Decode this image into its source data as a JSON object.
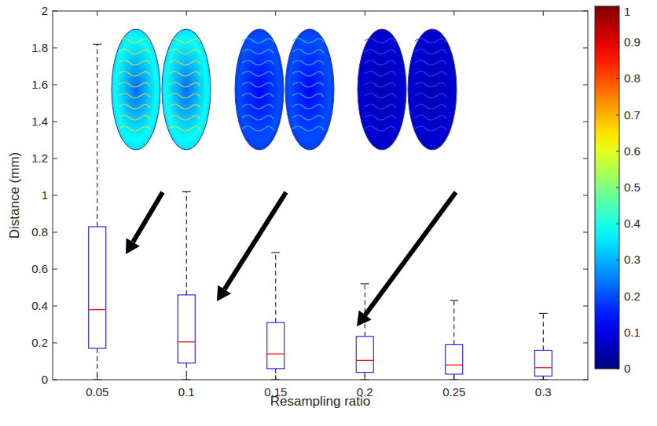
{
  "chart_data": {
    "type": "box",
    "x_label": "Resampling ratio",
    "y_label": "Distance (mm)",
    "categories": [
      "0.05",
      "0.1",
      "0.15",
      "0.2",
      "0.25",
      "0.3"
    ],
    "min": [
      0,
      0,
      0,
      0,
      0,
      0
    ],
    "q1": [
      0.17,
      0.09,
      0.06,
      0.04,
      0.03,
      0.02
    ],
    "median": [
      0.38,
      0.205,
      0.14,
      0.105,
      0.08,
      0.065
    ],
    "q3": [
      0.83,
      0.46,
      0.31,
      0.235,
      0.19,
      0.16
    ],
    "max": [
      1.82,
      1.02,
      0.69,
      0.52,
      0.43,
      0.36
    ],
    "color": "#0000ff",
    "ylim": [
      0,
      2
    ],
    "yticks": [
      0,
      0.2,
      0.4,
      0.6,
      0.8,
      1,
      1.2,
      1.4,
      1.6,
      1.8,
      2
    ],
    "grid": false,
    "colorbar": {
      "range": [
        0,
        1
      ],
      "ticks": [
        0,
        0.1,
        0.2,
        0.3,
        0.4,
        0.5,
        0.6,
        0.7,
        0.8,
        0.9,
        1
      ]
    }
  }
}
